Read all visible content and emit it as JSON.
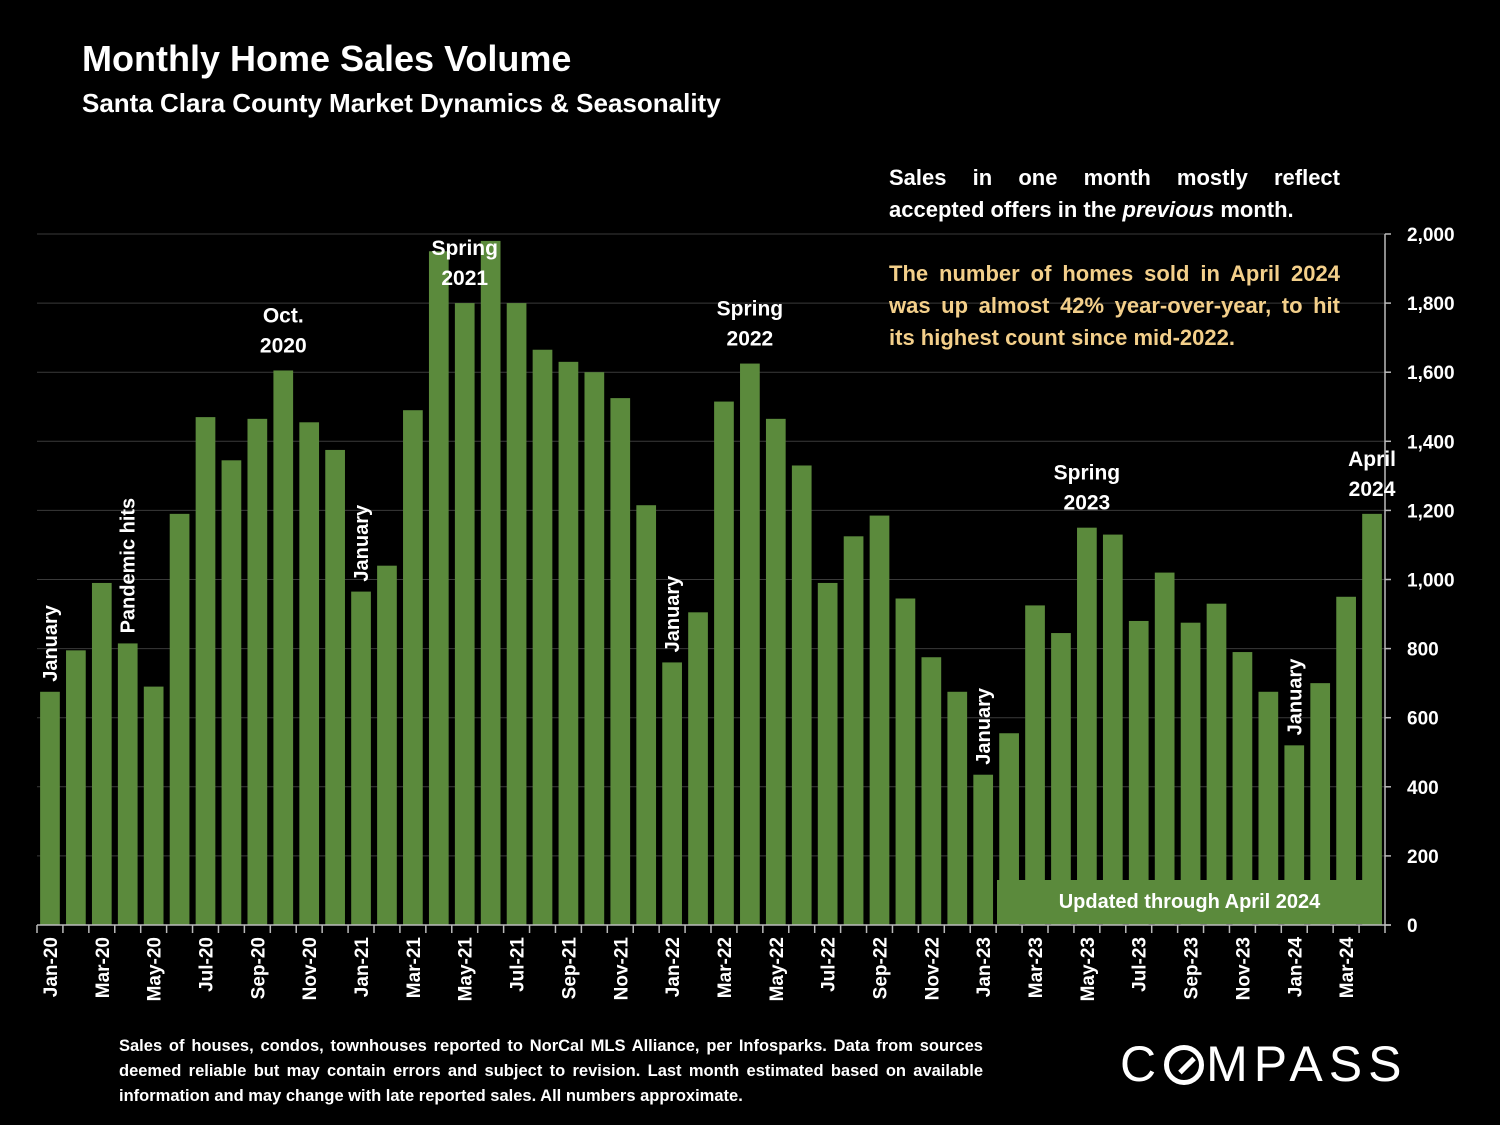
{
  "header": {
    "title": "Monthly Home Sales Volume",
    "subtitle": "Santa Clara County Market Dynamics & Seasonality"
  },
  "notes": {
    "note1_pre": "Sales in one month mostly reflect accepted offers in the ",
    "note1_em": "previous",
    "note1_post": " month.",
    "note2": "The number of homes sold in April 2024 was up almost 42% year-over-year, to hit its highest count since mid-2022."
  },
  "updated_label": "Updated through April 2024",
  "footnote": "Sales of houses, condos, townhouses reported to NorCal MLS Alliance, per Infosparks. Data from sources deemed reliable but may contain errors and subject to revision. Last month estimated based on available information and may change with late reported sales. All numbers approximate.",
  "logo": {
    "pre": "C",
    "post": "MPASS"
  },
  "colors": {
    "bar": "#5b8a3c",
    "background": "#000000",
    "text": "#ffffff",
    "highlight": "#f3cf8a"
  },
  "chart_data": {
    "type": "bar",
    "title": "Monthly Home Sales Volume",
    "categories": [
      "Jan-20",
      "Feb-20",
      "Mar-20",
      "Apr-20",
      "May-20",
      "Jun-20",
      "Jul-20",
      "Aug-20",
      "Sep-20",
      "Oct-20",
      "Nov-20",
      "Dec-20",
      "Jan-21",
      "Feb-21",
      "Mar-21",
      "Apr-21",
      "May-21",
      "Jun-21",
      "Jul-21",
      "Aug-21",
      "Sep-21",
      "Oct-21",
      "Nov-21",
      "Dec-21",
      "Jan-22",
      "Feb-22",
      "Mar-22",
      "Apr-22",
      "May-22",
      "Jun-22",
      "Jul-22",
      "Aug-22",
      "Sep-22",
      "Oct-22",
      "Nov-22",
      "Dec-22",
      "Jan-23",
      "Feb-23",
      "Mar-23",
      "Apr-23",
      "May-23",
      "Jun-23",
      "Jul-23",
      "Aug-23",
      "Sep-23",
      "Oct-23",
      "Nov-23",
      "Dec-23",
      "Jan-24",
      "Feb-24",
      "Mar-24",
      "Apr-24"
    ],
    "values": [
      675,
      795,
      990,
      815,
      690,
      1190,
      1470,
      1345,
      1465,
      1605,
      1455,
      1375,
      965,
      1040,
      1490,
      1950,
      1800,
      1980,
      1800,
      1665,
      1630,
      1600,
      1525,
      1215,
      760,
      905,
      1515,
      1625,
      1465,
      1330,
      990,
      1125,
      1185,
      945,
      775,
      675,
      435,
      555,
      925,
      845,
      1150,
      1130,
      880,
      1020,
      875,
      930,
      790,
      675,
      520,
      700,
      950,
      1190
    ],
    "x_tick_labels": [
      "Jan-20",
      "Mar-20",
      "May-20",
      "Jul-20",
      "Sep-20",
      "Nov-20",
      "Jan-21",
      "Mar-21",
      "May-21",
      "Jul-21",
      "Sep-21",
      "Nov-21",
      "Jan-22",
      "Mar-22",
      "May-22",
      "Jul-22",
      "Sep-22",
      "Nov-22",
      "Jan-23",
      "Mar-23",
      "May-23",
      "Jul-23",
      "Sep-23",
      "Nov-23",
      "Jan-24",
      "Mar-24"
    ],
    "y_tick_labels": [
      "0",
      "200",
      "400",
      "600",
      "800",
      "1,000",
      "1,200",
      "1,400",
      "1,600",
      "1,800",
      "2,000"
    ],
    "ylim": [
      0,
      2000
    ],
    "y_axis_side": "right",
    "grid": true,
    "annotations": [
      {
        "text": "January",
        "index": 0,
        "rotated": true
      },
      {
        "text": "Pandemic hits",
        "index": 3,
        "rotated": true
      },
      {
        "text": "Oct.|2020",
        "index": 9,
        "rotated": false
      },
      {
        "text": "January",
        "index": 12,
        "rotated": true
      },
      {
        "text": "Spring|2021",
        "index": 16,
        "rotated": false
      },
      {
        "text": "January",
        "index": 24,
        "rotated": true
      },
      {
        "text": "Spring|2022",
        "index": 27,
        "rotated": false
      },
      {
        "text": "January",
        "index": 36,
        "rotated": true
      },
      {
        "text": "Spring|2023",
        "index": 40,
        "rotated": false
      },
      {
        "text": "January",
        "index": 48,
        "rotated": true
      },
      {
        "text": "April|2024",
        "index": 51,
        "rotated": false
      }
    ]
  }
}
